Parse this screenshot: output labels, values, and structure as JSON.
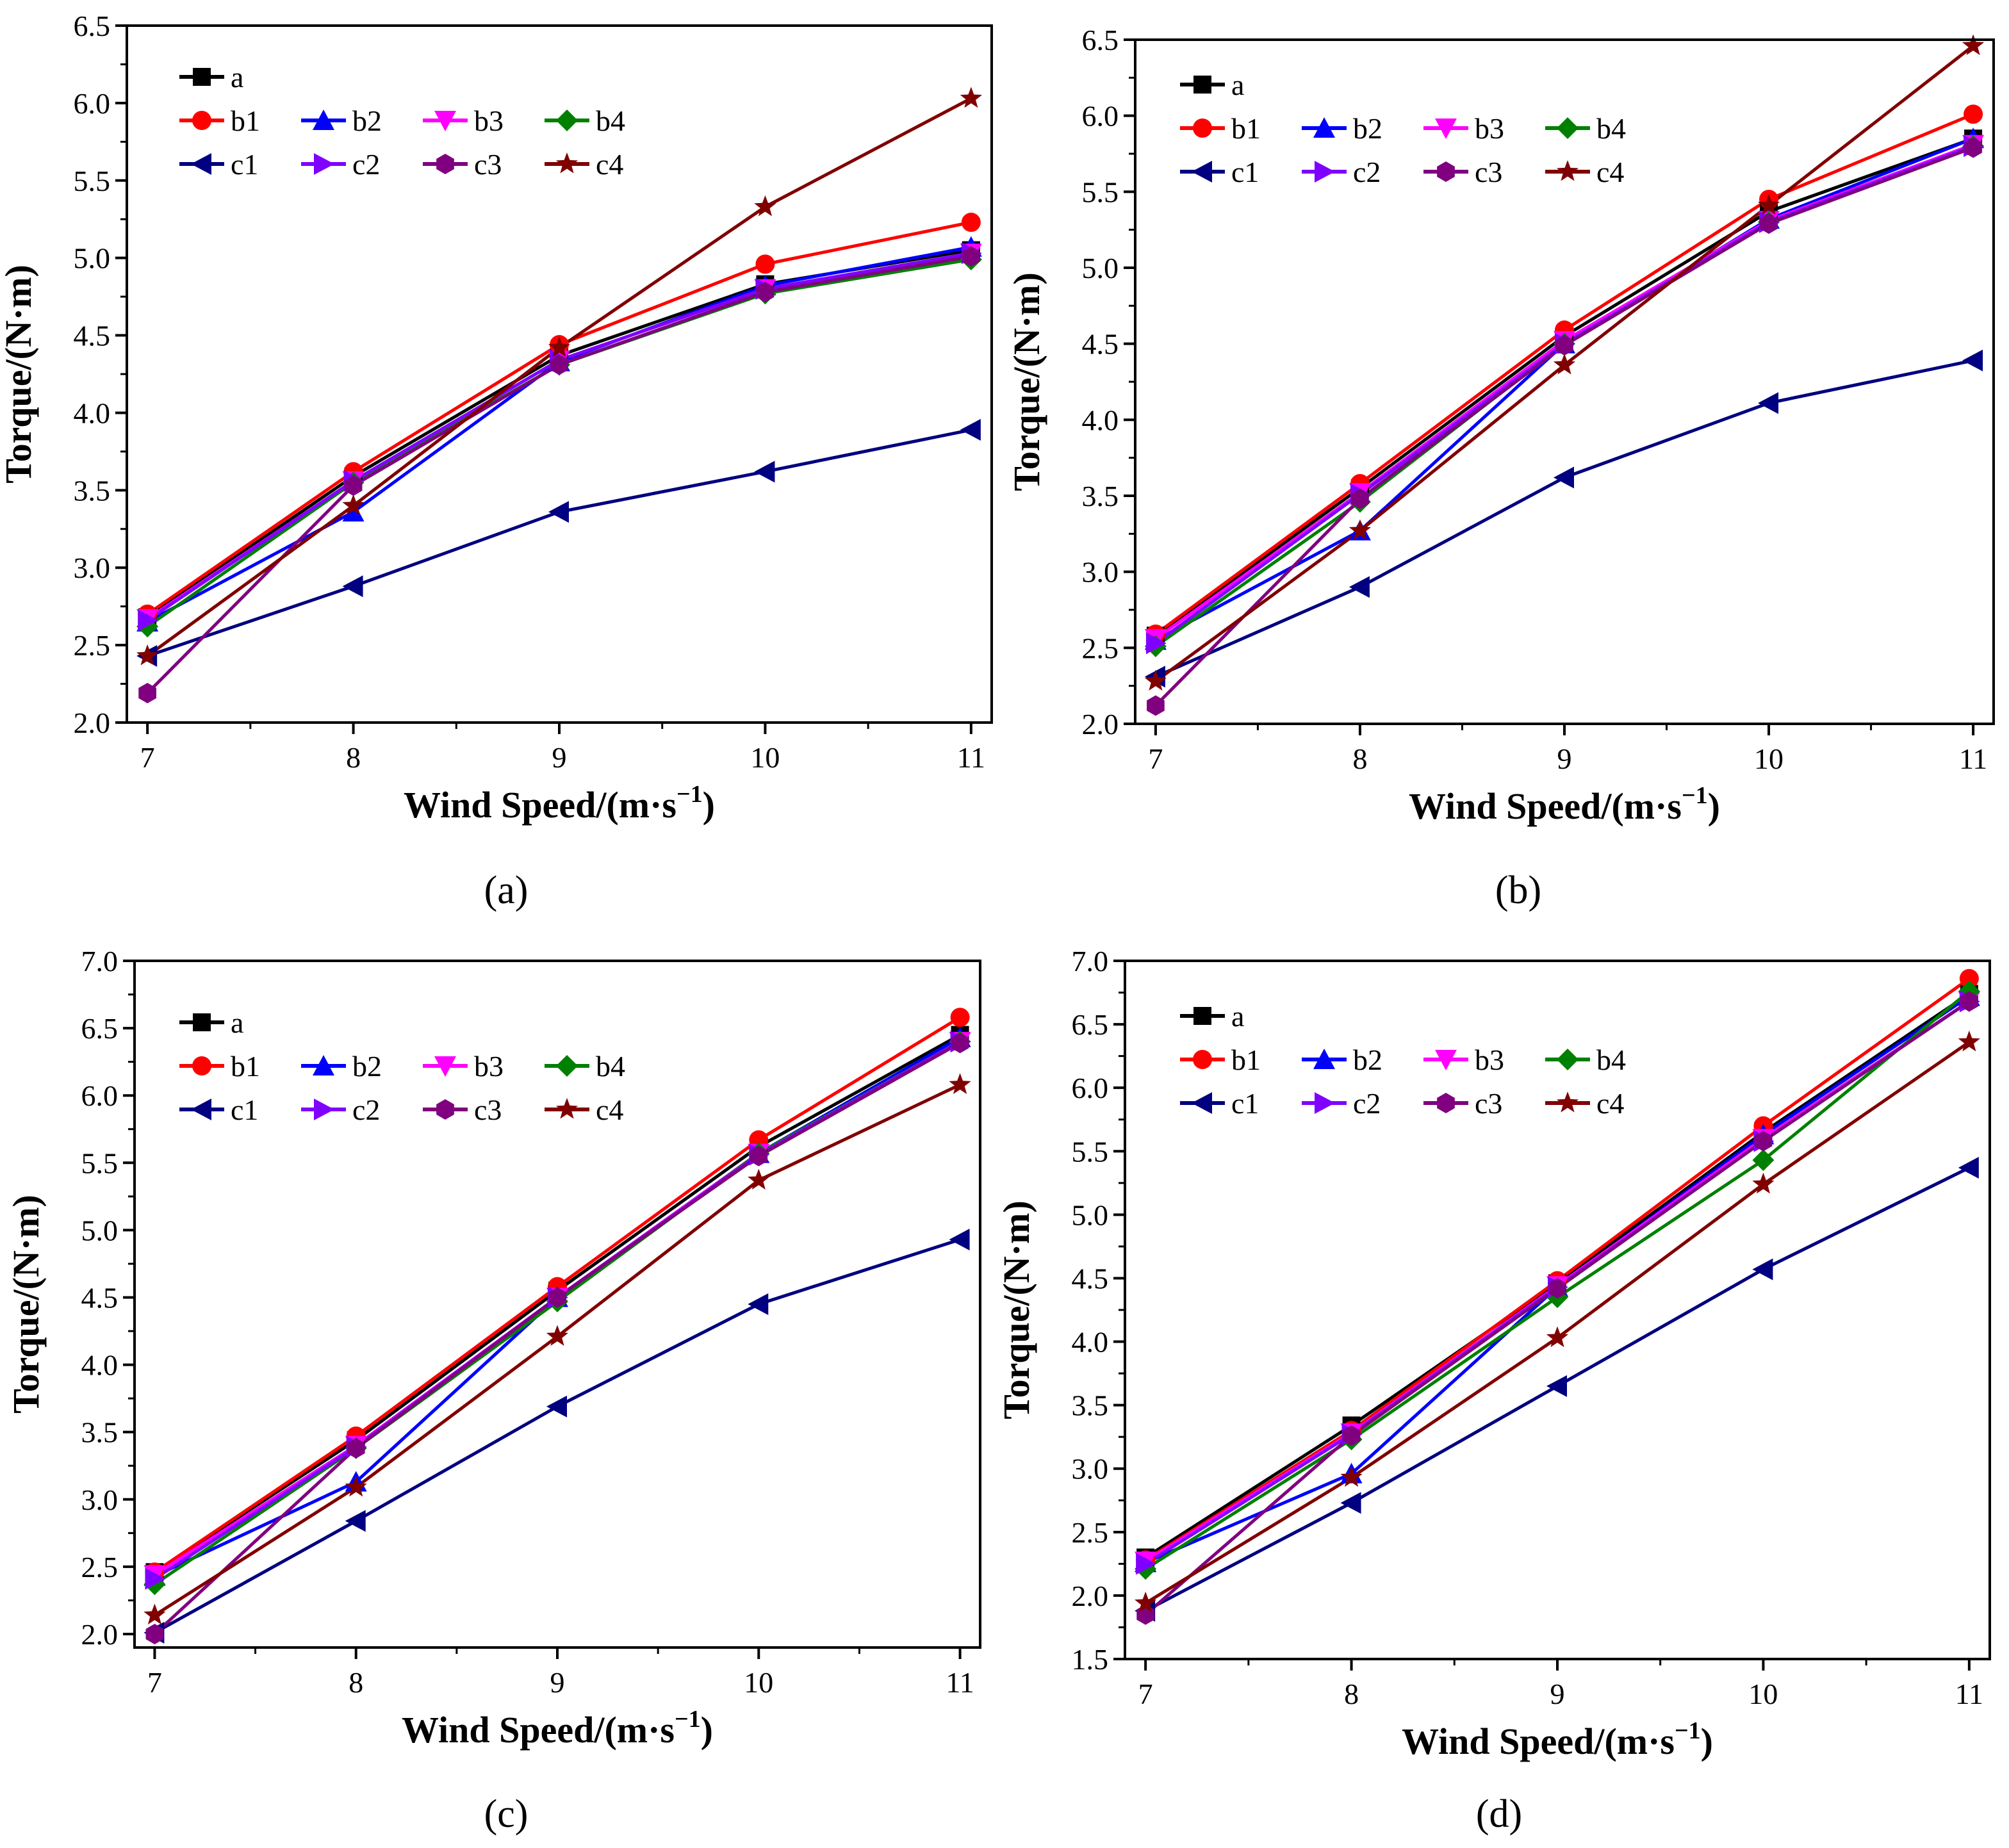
{
  "colors": {
    "a": "#000000",
    "b1": "#ff0000",
    "b2": "#0000ff",
    "b3": "#ff00ff",
    "b4": "#008000",
    "c1": "#000080",
    "c2": "#8000ff",
    "c3": "#800080",
    "c4": "#800000"
  },
  "chart_data": [
    {
      "type": "line",
      "caption": "(a)",
      "xlabel": "Wind Speed/(m·s",
      "xlabel_sup": "−1",
      "xlabel_end": ")",
      "ylabel": "Torque/(N·m)",
      "x": [
        7,
        8,
        9,
        10,
        11
      ],
      "xticks": [
        "7",
        "8",
        "9",
        "10",
        "11"
      ],
      "ylim": [
        2.0,
        6.5
      ],
      "yticks": [
        "2.0",
        "2.5",
        "3.0",
        "3.5",
        "4.0",
        "4.5",
        "5.0",
        "5.5",
        "6.0",
        "6.5"
      ],
      "series": [
        {
          "name": "a",
          "marker": "square",
          "values": [
            2.68,
            3.59,
            4.37,
            4.83,
            5.05
          ]
        },
        {
          "name": "b1",
          "marker": "circle",
          "values": [
            2.7,
            3.62,
            4.44,
            4.96,
            5.23
          ]
        },
        {
          "name": "b2",
          "marker": "triangle-up",
          "values": [
            2.65,
            3.36,
            4.33,
            4.82,
            5.07
          ]
        },
        {
          "name": "b3",
          "marker": "triangle-down",
          "values": [
            2.67,
            3.56,
            4.34,
            4.8,
            5.03
          ]
        },
        {
          "name": "b4",
          "marker": "diamond",
          "values": [
            2.62,
            3.55,
            4.31,
            4.77,
            4.99
          ]
        },
        {
          "name": "c1",
          "marker": "triangle-left",
          "values": [
            2.43,
            2.88,
            3.36,
            3.62,
            3.89
          ]
        },
        {
          "name": "c2",
          "marker": "triangle-right",
          "values": [
            2.66,
            3.56,
            4.34,
            4.8,
            5.03
          ]
        },
        {
          "name": "c3",
          "marker": "hexagon",
          "values": [
            2.19,
            3.53,
            4.31,
            4.78,
            5.01
          ]
        },
        {
          "name": "c4",
          "marker": "star",
          "values": [
            2.43,
            3.4,
            4.42,
            5.33,
            6.03
          ]
        }
      ]
    },
    {
      "type": "line",
      "caption": "(b)",
      "xlabel": "Wind Speed/(m·s",
      "xlabel_sup": "−1",
      "xlabel_end": ")",
      "ylabel": "Torque/(N·m)",
      "x": [
        7,
        8,
        9,
        10,
        11
      ],
      "xticks": [
        "7",
        "8",
        "9",
        "10",
        "11"
      ],
      "ylim": [
        2.0,
        6.5
      ],
      "yticks": [
        "2.0",
        "2.5",
        "3.0",
        "3.5",
        "4.0",
        "4.5",
        "5.0",
        "5.5",
        "6.0",
        "6.5"
      ],
      "series": [
        {
          "name": "a",
          "marker": "square",
          "values": [
            2.58,
            3.55,
            4.55,
            5.37,
            5.85
          ]
        },
        {
          "name": "b1",
          "marker": "circle",
          "values": [
            2.59,
            3.58,
            4.59,
            5.45,
            6.01
          ]
        },
        {
          "name": "b2",
          "marker": "triangle-up",
          "values": [
            2.55,
            3.27,
            4.5,
            5.32,
            5.85
          ]
        },
        {
          "name": "b3",
          "marker": "triangle-down",
          "values": [
            2.56,
            3.52,
            4.52,
            5.31,
            5.81
          ]
        },
        {
          "name": "b4",
          "marker": "diamond",
          "values": [
            2.51,
            3.46,
            4.5,
            5.3,
            5.8
          ]
        },
        {
          "name": "c1",
          "marker": "triangle-left",
          "values": [
            2.31,
            2.9,
            3.62,
            4.11,
            4.39
          ]
        },
        {
          "name": "c2",
          "marker": "triangle-right",
          "values": [
            2.53,
            3.51,
            4.5,
            5.3,
            5.8
          ]
        },
        {
          "name": "c3",
          "marker": "hexagon",
          "values": [
            2.12,
            3.48,
            4.49,
            5.29,
            5.79
          ]
        },
        {
          "name": "c4",
          "marker": "star",
          "values": [
            2.28,
            3.27,
            4.36,
            5.41,
            6.46
          ]
        }
      ]
    },
    {
      "type": "line",
      "caption": "(c)",
      "xlabel": "Wind Speed/(m·s",
      "xlabel_sup": "−1",
      "xlabel_end": ")",
      "ylabel": "Torque/(N·m)",
      "x": [
        7,
        8,
        9,
        10,
        11
      ],
      "xticks": [
        "7",
        "8",
        "9",
        "10",
        "11"
      ],
      "ylim": [
        1.9,
        7.0
      ],
      "yticks": [
        "2.0",
        "2.5",
        "3.0",
        "3.5",
        "4.0",
        "4.5",
        "5.0",
        "5.5",
        "6.0",
        "6.5",
        "7.0"
      ],
      "series": [
        {
          "name": "a",
          "marker": "square",
          "values": [
            2.46,
            3.44,
            4.55,
            5.62,
            6.45
          ]
        },
        {
          "name": "b1",
          "marker": "circle",
          "values": [
            2.46,
            3.47,
            4.58,
            5.67,
            6.58
          ]
        },
        {
          "name": "b2",
          "marker": "triangle-up",
          "values": [
            2.43,
            3.13,
            4.5,
            5.57,
            6.43
          ]
        },
        {
          "name": "b3",
          "marker": "triangle-down",
          "values": [
            2.44,
            3.4,
            4.5,
            5.57,
            6.4
          ]
        },
        {
          "name": "b4",
          "marker": "diamond",
          "values": [
            2.37,
            3.38,
            4.47,
            5.57,
            6.4
          ]
        },
        {
          "name": "c1",
          "marker": "triangle-left",
          "values": [
            2.01,
            2.84,
            3.69,
            4.45,
            4.93
          ]
        },
        {
          "name": "c2",
          "marker": "triangle-right",
          "values": [
            2.41,
            3.39,
            4.5,
            5.56,
            6.4
          ]
        },
        {
          "name": "c3",
          "marker": "hexagon",
          "values": [
            2.0,
            3.38,
            4.5,
            5.55,
            6.39
          ]
        },
        {
          "name": "c4",
          "marker": "star",
          "values": [
            2.14,
            3.09,
            4.21,
            5.37,
            6.08
          ]
        }
      ]
    },
    {
      "type": "line",
      "caption": "(d)",
      "xlabel": "Wind Speed/(m·s",
      "xlabel_sup": "−1",
      "xlabel_end": ")",
      "ylabel": "Torque/(N·m)",
      "x": [
        7,
        8,
        9,
        10,
        11
      ],
      "xticks": [
        "7",
        "8",
        "9",
        "10",
        "11"
      ],
      "ylim": [
        1.5,
        7.0
      ],
      "yticks": [
        "1.5",
        "2.0",
        "2.5",
        "3.0",
        "3.5",
        "4.0",
        "4.5",
        "5.0",
        "5.5",
        "6.0",
        "6.5",
        "7.0"
      ],
      "series": [
        {
          "name": "a",
          "marker": "square",
          "values": [
            2.3,
            3.34,
            4.46,
            5.65,
            6.74
          ]
        },
        {
          "name": "b1",
          "marker": "circle",
          "values": [
            2.28,
            3.3,
            4.48,
            5.7,
            6.86
          ]
        },
        {
          "name": "b2",
          "marker": "triangle-up",
          "values": [
            2.26,
            2.96,
            4.43,
            5.63,
            6.72
          ]
        },
        {
          "name": "b3",
          "marker": "triangle-down",
          "values": [
            2.27,
            3.28,
            4.44,
            5.6,
            6.68
          ]
        },
        {
          "name": "b4",
          "marker": "diamond",
          "values": [
            2.21,
            3.23,
            4.35,
            5.43,
            6.76
          ]
        },
        {
          "name": "c1",
          "marker": "triangle-left",
          "values": [
            1.88,
            2.73,
            3.65,
            4.57,
            5.37
          ]
        },
        {
          "name": "c2",
          "marker": "triangle-right",
          "values": [
            2.25,
            3.27,
            4.43,
            5.58,
            6.68
          ]
        },
        {
          "name": "c3",
          "marker": "hexagon",
          "values": [
            1.85,
            3.26,
            4.42,
            5.58,
            6.68
          ]
        },
        {
          "name": "c4",
          "marker": "star",
          "values": [
            1.94,
            2.93,
            4.03,
            5.24,
            6.36
          ]
        }
      ]
    }
  ]
}
